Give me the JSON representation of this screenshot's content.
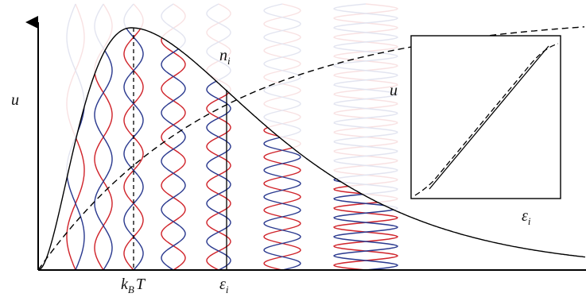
{
  "labels": {
    "y_axis": "u",
    "mode_number": {
      "main": "n",
      "sub": "i"
    },
    "inset_y": "u",
    "inset_x": {
      "main": "ε",
      "sub": "i"
    },
    "kbt": {
      "main": "k",
      "sub": "B",
      "tail": "T"
    },
    "energy": {
      "main": "ε",
      "sub": "i"
    }
  }
}
